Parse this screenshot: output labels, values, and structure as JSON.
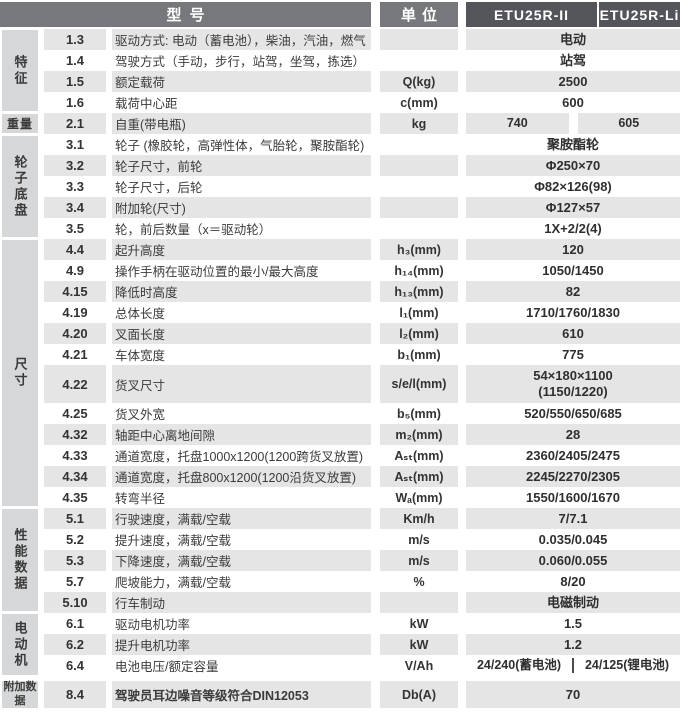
{
  "colors": {
    "header_dark": "#54555a",
    "header_light": "#77787b",
    "row_stripe": "#e5e5e6",
    "sidebar_bg": "#d6d7d8"
  },
  "header": {
    "model_col": "型号",
    "unit_col": "单位",
    "models": [
      "ETU25R-II",
      "ETU25R-Li"
    ]
  },
  "sidebar": {
    "sections": [
      {
        "label": "特征"
      },
      {
        "label": "重量"
      },
      {
        "label": "轮子底盘"
      },
      {
        "label": "尺寸"
      },
      {
        "label": "性能数据"
      },
      {
        "label": "电动机"
      },
      {
        "label": "附加数据"
      }
    ]
  },
  "table": {
    "rows": [
      {
        "num": "1.3",
        "desc": "驱动方式: 电动（蓄电池），柴油，汽油，燃气",
        "unit": "",
        "value": "电动"
      },
      {
        "num": "1.4",
        "desc": "驾驶方式（手动，步行，站驾，坐驾，拣选）",
        "unit": "",
        "value": "站驾"
      },
      {
        "num": "1.5",
        "desc": "额定载荷",
        "unit": "Q(kg)",
        "value": "2500"
      },
      {
        "num": "1.6",
        "desc": "载荷中心距",
        "unit": "c(mm)",
        "value": "600"
      },
      {
        "num": "2.1",
        "desc": "自重(带电瓶)",
        "unit": "kg",
        "values": [
          "740",
          "605"
        ]
      },
      {
        "num": "3.1",
        "desc": "轮子 (橡胶轮，高弹性体，气胎轮，聚胺酯轮)",
        "unit": "",
        "value": "聚胺酯轮"
      },
      {
        "num": "3.2",
        "desc": "轮子尺寸，前轮",
        "unit": "",
        "value": "Φ250×70"
      },
      {
        "num": "3.3",
        "desc": "轮子尺寸，后轮",
        "unit": "",
        "value": "Φ82×126(98)"
      },
      {
        "num": "3.4",
        "desc": "附加轮(尺寸)",
        "unit": "",
        "value": "Φ127×57"
      },
      {
        "num": "3.5",
        "desc": "轮，前后数量（x＝驱动轮）",
        "unit": "",
        "value": "1X+2/2(4)"
      },
      {
        "num": "4.4",
        "desc": "起升高度",
        "unit": "h₃(mm)",
        "value": "120"
      },
      {
        "num": "4.9",
        "desc": "操作手柄在驱动位置的最小/最大高度",
        "unit": "h₁₄(mm)",
        "value": "1050/1450"
      },
      {
        "num": "4.15",
        "desc": "降低时高度",
        "unit": "h₁₃(mm)",
        "value": "82"
      },
      {
        "num": "4.19",
        "desc": "总体长度",
        "unit": "l₁(mm)",
        "value": "1710/1760/1830"
      },
      {
        "num": "4.20",
        "desc": "叉面长度",
        "unit": "l₂(mm)",
        "value": "610"
      },
      {
        "num": "4.21",
        "desc": "车体宽度",
        "unit": "b₁(mm)",
        "value": "775"
      },
      {
        "num": "4.22",
        "desc": "货叉尺寸",
        "unit": "s/e/l(mm)",
        "value": "54×180×1100\n(1150/1220)"
      },
      {
        "num": "4.25",
        "desc": "货叉外宽",
        "unit": "b₅(mm)",
        "value": "520/550/650/685"
      },
      {
        "num": "4.32",
        "desc": "轴距中心离地间隙",
        "unit": "m₂(mm)",
        "value": "28"
      },
      {
        "num": "4.33",
        "desc": "通道宽度，托盘1000x1200(1200跨货叉放置)",
        "unit": "Aₛₜ(mm)",
        "value": "2360/2405/2475"
      },
      {
        "num": "4.34",
        "desc": "通道宽度，托盘800x1200(1200沿货叉放置)",
        "unit": "Aₛₜ(mm)",
        "value": "2245/2270/2305"
      },
      {
        "num": "4.35",
        "desc": "转弯半径",
        "unit": "Wₐ(mm)",
        "value": "1550/1600/1670"
      },
      {
        "num": "5.1",
        "desc": "行驶速度，满载/空载",
        "unit": "Km/h",
        "value": "7/7.1"
      },
      {
        "num": "5.2",
        "desc": "提升速度，满载/空载",
        "unit": "m/s",
        "value": "0.035/0.045"
      },
      {
        "num": "5.3",
        "desc": "下降速度，满载/空载",
        "unit": "m/s",
        "value": "0.060/0.055"
      },
      {
        "num": "5.7",
        "desc": "爬坡能力，满载/空载",
        "unit": "%",
        "value": "8/20"
      },
      {
        "num": "5.10",
        "desc": "行车制动",
        "unit": "",
        "value": "电磁制动"
      },
      {
        "num": "6.1",
        "desc": "驱动电机功率",
        "unit": "kW",
        "value": "1.5"
      },
      {
        "num": "6.2",
        "desc": "提升电机功率",
        "unit": "kW",
        "value": "1.2"
      },
      {
        "num": "6.4",
        "desc": "电池电压/额定容量",
        "unit": "V/Ah",
        "values": [
          "24/240(蓄电池)",
          "24/125(锂电池)"
        ]
      },
      {
        "num": "8.4",
        "desc": "驾驶员耳边噪音等级符合DIN12053",
        "unit": "Db(A)",
        "value": "70"
      }
    ]
  }
}
